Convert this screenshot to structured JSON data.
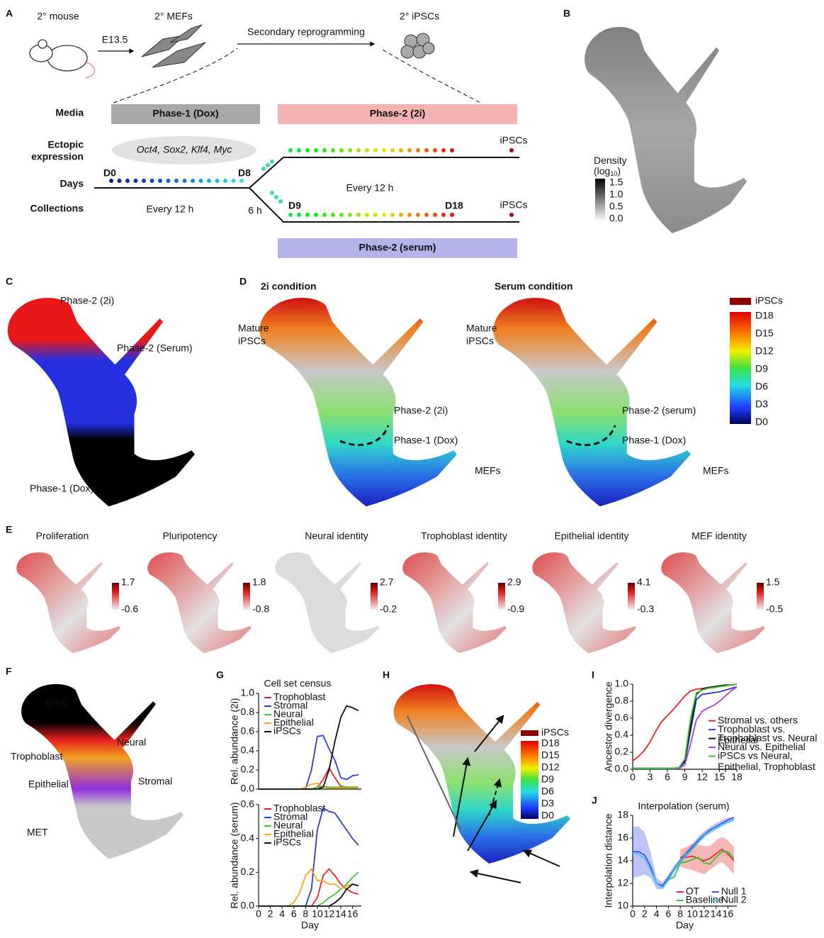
{
  "figure": {
    "a": {
      "label": "A",
      "mouse": "2° mouse",
      "mefs": "2° MEFs",
      "ipscs": "2° iPSCs",
      "e135": "E13.5",
      "secondary": "Secondary reprogramming",
      "rows": [
        "Media",
        "Ectopic",
        "expression",
        "Days",
        "Collections"
      ],
      "phase1": "Phase-1 (Dox)",
      "phase2_2i": "Phase-2 (2i)",
      "phase2_serum": "Phase-2 (serum)",
      "factors": "Oct4, Sox2, Klf4, Myc",
      "ipscs_top": "iPSCs",
      "ipscs_bottom": "iPSCs",
      "d0": "D0",
      "d8": "D8",
      "d9": "D9",
      "d18": "D18",
      "every_top": "Every 12 h",
      "every_bottom": "Every 12 h",
      "six_h": "6 h"
    },
    "b": {
      "label": "B",
      "density": "Density",
      "log": "(log",
      "sub": "10",
      "close": ")",
      "ticks": [
        "1.5",
        "1.0",
        "0.5",
        "0.0"
      ]
    },
    "c": {
      "label": "C",
      "phase2_2i": "Phase-2 (2i)",
      "phase2_serum": "Phase-2 (Serum)",
      "phase1": "Phase-1 (Dox)"
    },
    "d": {
      "label": "D",
      "left_title": "2i  condition",
      "right_title": "Serum condition",
      "left": [
        "Mature",
        "iPSCs",
        "Phase-2 (2i)",
        "Phase-1 (Dox)",
        "MEFs"
      ],
      "right": [
        "Mature",
        "iPSCs",
        "Phase-2 (serum)",
        "Phase-1 (Dox)",
        "MEFs"
      ],
      "scale_top": "iPSCs",
      "scale": [
        "D18",
        "D15",
        "D12",
        "D9",
        "D6",
        "D3",
        "D0"
      ]
    },
    "e": {
      "label": "E",
      "maps": [
        {
          "title": "Proliferation",
          "max": "1.7",
          "min": "-0.6"
        },
        {
          "title": "Pluripotency",
          "max": "1.8",
          "min": "-0.8"
        },
        {
          "title": "Neural identity",
          "max": "2.7",
          "min": "-0.2"
        },
        {
          "title": "Trophoblast identity",
          "max": "2.9",
          "min": "-0.9"
        },
        {
          "title": "Epithelial identity",
          "max": "4.1",
          "min": "-0.3"
        },
        {
          "title": "MEF identity",
          "max": "1.5",
          "min": "-0.5"
        }
      ]
    },
    "f": {
      "label": "F",
      "labels": [
        "iPSC",
        "Neural",
        "Trophoblast",
        "Epithelial",
        "Stromal",
        "MET"
      ]
    },
    "g": {
      "label": "G"
    },
    "h": {
      "label": "H",
      "scale_top": "iPSCs",
      "scale": [
        "D18",
        "D15",
        "D12",
        "D9",
        "D6",
        "D3",
        "D0"
      ]
    },
    "i": {
      "label": "I"
    },
    "j": {
      "label": "J"
    }
  },
  "chart_data": [
    {
      "type": "line",
      "title": "Cell set census",
      "ylabel": "Rel. abundance (2i)",
      "legend": "upper left",
      "x": [
        0,
        1,
        2,
        3,
        4,
        5,
        6,
        7,
        8,
        9,
        10,
        11,
        12,
        13,
        14,
        15,
        16,
        17
      ],
      "xlim": [
        0,
        17.5
      ],
      "ylim": [
        0,
        1
      ],
      "yticks": [
        {
          "value": 0,
          "label": "0.0"
        },
        0.2,
        0.4,
        0.6,
        0.8,
        {
          "value": 1,
          "label": "1.0"
        }
      ],
      "series": [
        {
          "name": "Trophoblast",
          "color": "#e8262a",
          "values": [
            0,
            0,
            0,
            0,
            0,
            0,
            0,
            0,
            0,
            0,
            0.02,
            0.1,
            0.22,
            0.12,
            0.03,
            0.02,
            0.02,
            0.02
          ]
        },
        {
          "name": "Stromal",
          "color": "#2a3bd8",
          "values": [
            0,
            0,
            0,
            0,
            0,
            0,
            0,
            0,
            0,
            0.2,
            0.55,
            0.56,
            0.42,
            0.3,
            0.12,
            0.1,
            0.14,
            0.15
          ]
        },
        {
          "name": "Neural",
          "color": "#3ac53a",
          "values": [
            0,
            0,
            0,
            0,
            0,
            0,
            0,
            0,
            0,
            0,
            0.02,
            0.03,
            0.02,
            0.02,
            0.02,
            0.02,
            0.02,
            0.02
          ]
        },
        {
          "name": "Epithelial",
          "color": "#f7a51c",
          "values": [
            0,
            0,
            0,
            0,
            0,
            0,
            0,
            0,
            0.02,
            0.05,
            0.06,
            0.02,
            0.01,
            0.01,
            0.01,
            0.01,
            0.01,
            0.01
          ]
        },
        {
          "name": "iPSCs",
          "color": "#111111",
          "values": [
            0,
            0,
            0,
            0,
            0,
            0,
            0,
            0,
            0,
            0,
            0,
            0.02,
            0.2,
            0.5,
            0.75,
            0.87,
            0.85,
            0.82
          ]
        }
      ]
    },
    {
      "type": "line",
      "ylabel": "Rel. abundance (serum)",
      "xlabel": "Day",
      "legend": "upper left",
      "x": [
        0,
        1,
        2,
        3,
        4,
        5,
        6,
        7,
        8,
        9,
        10,
        11,
        12,
        13,
        14,
        15,
        16,
        17
      ],
      "xlim": [
        0,
        17.5
      ],
      "xticks": [
        0,
        2,
        4,
        6,
        8,
        10,
        12,
        14,
        16
      ],
      "ylim": [
        0,
        0.6
      ],
      "yticks": [
        {
          "value": 0,
          "label": "0.0"
        },
        0.2,
        0.4,
        0.6
      ],
      "series": [
        {
          "name": "Trophoblast",
          "color": "#e8262a",
          "values": [
            0,
            0,
            0,
            0,
            0,
            0,
            0,
            0,
            0,
            0,
            0.05,
            0.18,
            0.22,
            0.18,
            0.13,
            0.1,
            0.08,
            0.07
          ]
        },
        {
          "name": "Stromal",
          "color": "#2a3bd8",
          "values": [
            0,
            0,
            0,
            0,
            0,
            0,
            0,
            0,
            0,
            0.1,
            0.45,
            0.58,
            0.56,
            0.55,
            0.5,
            0.45,
            0.4,
            0.36
          ]
        },
        {
          "name": "Neural",
          "color": "#3ac53a",
          "values": [
            0,
            0,
            0,
            0,
            0,
            0,
            0,
            0,
            0,
            0,
            0,
            0.02,
            0.05,
            0.07,
            0.1,
            0.13,
            0.17,
            0.2
          ]
        },
        {
          "name": "Epithelial",
          "color": "#f7a51c",
          "values": [
            0,
            0,
            0,
            0,
            0,
            0,
            0.02,
            0.08,
            0.18,
            0.22,
            0.15,
            0.15,
            0.13,
            0.13,
            0.1,
            0.12,
            0.13,
            0.12
          ]
        },
        {
          "name": "iPSCs",
          "color": "#111111",
          "values": [
            0,
            0,
            0,
            0,
            0,
            0,
            0,
            0,
            0,
            0,
            0,
            0,
            0,
            0.02,
            0.05,
            0.1,
            0.13,
            0.12
          ]
        }
      ]
    },
    {
      "type": "line",
      "ylabel": "Ancestor divergence",
      "legend": "center right",
      "x": [
        0,
        1,
        2,
        3,
        4,
        5,
        6,
        7,
        8,
        9,
        10,
        11,
        12,
        13,
        14,
        15,
        16,
        17,
        18
      ],
      "xlim": [
        0,
        18
      ],
      "xticks": [
        0,
        3,
        6,
        9,
        12,
        15,
        18
      ],
      "ylim": [
        0,
        1
      ],
      "yticks": [
        {
          "value": 0,
          "label": "0.0"
        },
        0.2,
        0.4,
        0.6,
        0.8,
        {
          "value": 1,
          "label": "1.0"
        }
      ],
      "series": [
        {
          "name": "Stromal vs. others",
          "color": "#e8262a",
          "values": [
            0.1,
            0.15,
            0.22,
            0.32,
            0.45,
            0.56,
            0.63,
            0.7,
            0.78,
            0.86,
            0.92,
            0.94,
            0.95,
            0.96,
            0.97,
            0.98,
            0.98,
            0.99,
            1.0
          ]
        },
        {
          "name": "Trophoblast vs. Epithelial",
          "color": "#2a3bd8",
          "values": [
            0.01,
            0.01,
            0.01,
            0.01,
            0.01,
            0.01,
            0.01,
            0.01,
            0.02,
            0.08,
            0.45,
            0.82,
            0.88,
            0.89,
            0.9,
            0.91,
            0.93,
            0.95,
            0.97
          ]
        },
        {
          "name": "Trophoblast vs. Neural",
          "color": "#111111",
          "values": [
            0.01,
            0.01,
            0.01,
            0.01,
            0.01,
            0.01,
            0.01,
            0.01,
            0.02,
            0.1,
            0.5,
            0.88,
            0.94,
            0.96,
            0.97,
            0.98,
            0.99,
            0.99,
            1.0
          ]
        },
        {
          "name": "Neural vs. Epithelial",
          "color": "#a040e0",
          "values": [
            0.01,
            0.01,
            0.01,
            0.01,
            0.01,
            0.01,
            0.01,
            0.01,
            0.01,
            0.05,
            0.3,
            0.58,
            0.68,
            0.72,
            0.75,
            0.8,
            0.86,
            0.92,
            0.97
          ]
        },
        {
          "name": "iPSCs vs Neural, Epithelial, Trophoblast",
          "color": "#3ac53a",
          "values": [
            0.01,
            0.01,
            0.01,
            0.01,
            0.01,
            0.01,
            0.01,
            0.01,
            0.02,
            0.12,
            0.6,
            0.9,
            0.93,
            0.95,
            0.96,
            0.97,
            0.98,
            0.99,
            1.0
          ]
        }
      ]
    },
    {
      "type": "line",
      "title": "Interpolation (serum)",
      "ylabel": "Interpolation distance",
      "xlabel": "Day",
      "legend": "lower center",
      "x": [
        0,
        1,
        2,
        3,
        4,
        5,
        6,
        7,
        8,
        9,
        10,
        11,
        12,
        13,
        14,
        15,
        16,
        17
      ],
      "xlim": [
        0,
        17.5
      ],
      "xticks": [
        0,
        2,
        4,
        6,
        8,
        10,
        12,
        14,
        16
      ],
      "ylim": [
        10,
        18
      ],
      "yticks": [
        10,
        12,
        14,
        16,
        18
      ],
      "series": [
        {
          "name": "OT",
          "color": "#e83030",
          "values": [
            null,
            null,
            null,
            null,
            null,
            null,
            null,
            null,
            14.3,
            14.3,
            14.4,
            14.2,
            14,
            14.2,
            14.6,
            15,
            14.6,
            14
          ],
          "lower": [
            null,
            null,
            null,
            null,
            null,
            null,
            null,
            null,
            13.5,
            13.3,
            13.2,
            13,
            12.8,
            13.2,
            13.6,
            13.9,
            13.4,
            12.8
          ],
          "upper": [
            null,
            null,
            null,
            null,
            null,
            null,
            null,
            null,
            15,
            15.2,
            15.5,
            15.4,
            15.3,
            15.3,
            15.8,
            16.1,
            15.8,
            15.2
          ]
        },
        {
          "name": "Baseline",
          "color": "#33c833",
          "values": [
            null,
            null,
            null,
            null,
            null,
            null,
            12.3,
            12.6,
            13.8,
            13.9,
            14.1,
            14.3,
            13.8,
            13.7,
            14.3,
            14.8,
            14.8,
            14.2
          ]
        },
        {
          "name": "Null 1",
          "color": "#4455dd",
          "values": [
            14.8,
            14.8,
            14.5,
            13.5,
            12,
            11.8,
            12.5,
            13.3,
            14,
            14.6,
            15.2,
            15.8,
            16.3,
            16.7,
            17,
            17.3,
            17.6,
            17.8
          ],
          "lower": [
            12.5,
            12.6,
            12.8,
            12.5,
            11.5,
            11.5,
            12.2,
            13,
            13.7,
            14.3,
            14.9,
            15.5,
            16,
            16.4,
            16.7,
            17,
            17.3,
            17.5
          ],
          "upper": [
            17,
            17,
            16.5,
            14.8,
            12.5,
            12.1,
            12.8,
            13.6,
            14.3,
            14.9,
            15.5,
            16.1,
            16.6,
            17,
            17.3,
            17.6,
            17.8,
            17.9
          ]
        },
        {
          "name": "Null 2",
          "color": "#33ccee",
          "values": [
            14.7,
            14.6,
            14.2,
            13.2,
            12,
            11.6,
            12.3,
            13.2,
            13.9,
            14.5,
            15,
            15.6,
            16.2,
            16.6,
            16.9,
            17.2,
            17.4,
            17.6
          ]
        }
      ]
    }
  ]
}
